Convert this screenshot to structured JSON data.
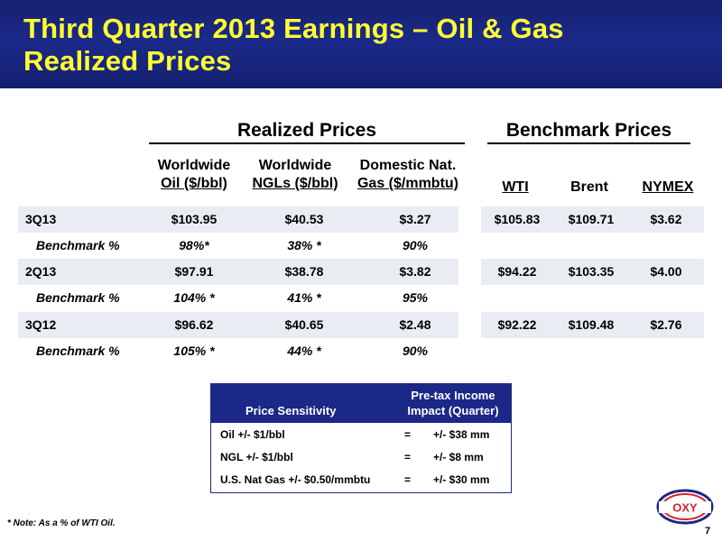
{
  "slide": {
    "title_line1": "Third Quarter 2013 Earnings – Oil & Gas",
    "title_line2": "Realized Prices",
    "page_number": "7",
    "footnote": "* Note:  As a % of WTI Oil.",
    "logo_text": "OXY"
  },
  "realized": {
    "heading": "Realized Prices",
    "col1_line1": "Worldwide",
    "col1_line2": "Oil ($/bbl)",
    "col2_line1": "Worldwide",
    "col2_line2": "NGLs ($/bbl)",
    "col3_line1": "Domestic Nat.",
    "col3_line2": "Gas ($/mmbtu)",
    "rows": [
      {
        "label": "3Q13",
        "oil": "$103.95",
        "ngl": "$40.53",
        "gas": "$3.27"
      },
      {
        "label": "Benchmark %",
        "oil": "98%*",
        "ngl": "38% *",
        "gas": "90%"
      },
      {
        "label": "2Q13",
        "oil": "$97.91",
        "ngl": "$38.78",
        "gas": "$3.82"
      },
      {
        "label": "Benchmark %",
        "oil": "104% *",
        "ngl": "41% *",
        "gas": "95%"
      },
      {
        "label": "3Q12",
        "oil": "$96.62",
        "ngl": "$40.65",
        "gas": "$2.48"
      },
      {
        "label": "Benchmark %",
        "oil": "105% *",
        "ngl": "44% *",
        "gas": "90%"
      }
    ]
  },
  "benchmark": {
    "heading": "Benchmark Prices",
    "col1": "WTI",
    "col2": "Brent",
    "col3": "NYMEX",
    "rows": [
      {
        "wti": "$105.83",
        "brent": "$109.71",
        "nymex": "$3.62"
      },
      {
        "wti": "$94.22",
        "brent": "$103.35",
        "nymex": "$4.00"
      },
      {
        "wti": "$92.22",
        "brent": "$109.48",
        "nymex": "$2.76"
      }
    ]
  },
  "sensitivity": {
    "col1_header": "Price Sensitivity",
    "col2_header_line1": "Pre-tax Income",
    "col2_header_line2": "Impact (Quarter)",
    "rows": [
      {
        "item": "Oil +/- $1/bbl",
        "eq": "=",
        "impact": "+/- $38 mm"
      },
      {
        "item": "NGL +/- $1/bbl",
        "eq": "=",
        "impact": "+/- $8 mm"
      },
      {
        "item": "U.S. Nat Gas +/- $0.50/mmbtu",
        "eq": "=",
        "impact": "+/- $30 mm"
      }
    ]
  },
  "colors": {
    "header_bg": "#1b2a8a",
    "title_text": "#ffff33",
    "row_shade": "#e9ecf3",
    "logo_red": "#d7232a",
    "logo_blue": "#1b2887"
  }
}
